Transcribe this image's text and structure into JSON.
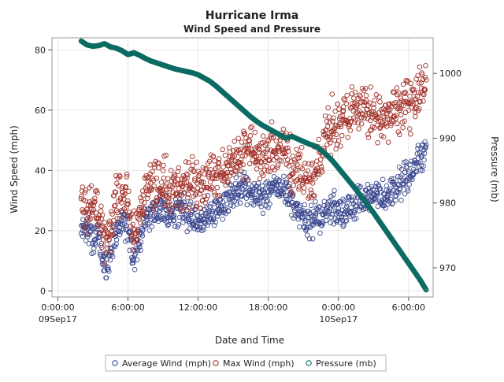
{
  "chart_data": {
    "type": "scatter",
    "title": "Hurricane Irma",
    "subtitle": "Wind Speed and Pressure",
    "xlabel": "Date and Time",
    "ylabel_left": "Wind Speed (mph)",
    "ylabel_right": "Pressure (mb)",
    "x_unit": "hours",
    "xlim": [
      -0.5,
      32.1
    ],
    "ylim_left": [
      -2,
      84
    ],
    "ylim_right": [
      965.5,
      1005.5
    ],
    "grid": true,
    "legend_position": "bottom",
    "x_ticks": [
      {
        "x": 0,
        "time": "0:00:00",
        "date": "09Sep17"
      },
      {
        "x": 6,
        "time": "6:00:00",
        "date": ""
      },
      {
        "x": 12,
        "time": "12:00:00",
        "date": ""
      },
      {
        "x": 18,
        "time": "18:00:00",
        "date": ""
      },
      {
        "x": 24,
        "time": "0:00:00",
        "date": "10Sep17"
      },
      {
        "x": 30,
        "time": "6:00:00",
        "date": ""
      }
    ],
    "y_ticks_left": [
      0,
      20,
      40,
      60,
      80
    ],
    "y_ticks_right": [
      970,
      980,
      990,
      1000
    ],
    "colors": {
      "avg": "#3d4a91",
      "max": "#a3322a",
      "pressure": "#0c6b62",
      "grid": "#e7e7e7",
      "frame": "#9a9a9a"
    },
    "series": [
      {
        "name": "Average Wind (mph)",
        "axis": "left",
        "x": [
          2.0,
          2.5,
          3.0,
          3.5,
          4.0,
          4.2,
          4.5,
          5.0,
          5.5,
          6.0,
          6.3,
          6.6,
          7.0,
          7.5,
          8.0,
          8.5,
          9.0,
          9.5,
          10.0,
          10.5,
          11.0,
          11.5,
          12.0,
          12.5,
          13.0,
          13.5,
          14.0,
          14.5,
          15.0,
          15.5,
          16.0,
          16.5,
          17.0,
          17.5,
          18.0,
          18.5,
          19.0,
          19.5,
          20.0,
          20.5,
          21.0,
          21.5,
          22.0,
          22.5,
          23.0,
          23.5,
          24.0,
          24.5,
          25.0,
          25.5,
          26.0,
          26.5,
          27.0,
          27.5,
          28.0,
          28.5,
          29.0,
          29.5,
          30.0,
          30.5,
          31.0,
          31.5
        ],
        "values": [
          22,
          20,
          19,
          17,
          10,
          7,
          14,
          20,
          24,
          22,
          14,
          11,
          18,
          24,
          27,
          26,
          27,
          25,
          26,
          28,
          26,
          25,
          24,
          24,
          27,
          27,
          28,
          30,
          32,
          34,
          35,
          34,
          32,
          31,
          32,
          34,
          34,
          33,
          30,
          26,
          24,
          23,
          24,
          25,
          26,
          27,
          26,
          27,
          28,
          29,
          30,
          31,
          32,
          31,
          30,
          32,
          35,
          37,
          38,
          41,
          44,
          46
        ]
      },
      {
        "name": "Max Wind (mph)",
        "axis": "left",
        "x": [
          2.0,
          2.5,
          3.0,
          3.5,
          4.0,
          4.2,
          4.5,
          5.0,
          5.5,
          6.0,
          6.3,
          6.6,
          7.0,
          7.5,
          8.0,
          8.5,
          9.0,
          9.5,
          10.0,
          10.5,
          11.0,
          11.5,
          12.0,
          12.5,
          13.0,
          13.5,
          14.0,
          14.5,
          15.0,
          15.5,
          16.0,
          16.5,
          17.0,
          17.5,
          18.0,
          18.5,
          19.0,
          19.5,
          20.0,
          20.5,
          21.0,
          21.5,
          22.0,
          22.5,
          23.0,
          23.5,
          24.0,
          24.5,
          25.0,
          25.5,
          26.0,
          26.5,
          27.0,
          27.5,
          28.0,
          28.5,
          29.0,
          29.5,
          30.0,
          30.5,
          31.0,
          31.5
        ],
        "values": [
          30,
          29,
          28,
          26,
          18,
          15,
          22,
          30,
          34,
          31,
          22,
          18,
          27,
          33,
          36,
          35,
          36,
          33,
          34,
          37,
          36,
          36,
          34,
          35,
          38,
          39,
          40,
          41,
          43,
          45,
          46,
          47,
          46,
          44,
          45,
          47,
          48,
          46,
          42,
          40,
          38,
          37,
          40,
          45,
          52,
          55,
          55,
          56,
          58,
          59,
          60,
          60,
          58,
          57,
          56,
          58,
          60,
          61,
          62,
          64,
          66,
          68
        ]
      },
      {
        "name": "Pressure (mb)",
        "axis": "right",
        "x": [
          2.0,
          2.5,
          3.0,
          3.5,
          4.0,
          4.5,
          5.0,
          5.5,
          6.0,
          6.5,
          7.0,
          7.5,
          8.0,
          8.5,
          9.0,
          9.5,
          10.0,
          10.5,
          11.0,
          11.5,
          12.0,
          12.5,
          13.0,
          13.5,
          14.0,
          14.5,
          15.0,
          15.5,
          16.0,
          16.5,
          17.0,
          17.5,
          18.0,
          18.5,
          19.0,
          19.5,
          20.0,
          20.5,
          21.0,
          21.5,
          22.0,
          22.5,
          23.0,
          23.5,
          24.0,
          24.5,
          25.0,
          25.5,
          26.0,
          26.5,
          27.0,
          27.5,
          28.0,
          28.5,
          29.0,
          29.5,
          30.0,
          30.5,
          31.0,
          31.5
        ],
        "values": [
          1005,
          1004.4,
          1004.2,
          1004.3,
          1004.6,
          1004.1,
          1003.9,
          1003.5,
          1002.9,
          1003.2,
          1002.8,
          1002.3,
          1001.9,
          1001.6,
          1001.3,
          1001.0,
          1000.7,
          1000.5,
          1000.3,
          1000.1,
          999.8,
          999.3,
          998.8,
          998.1,
          997.3,
          996.5,
          995.7,
          994.9,
          994.1,
          993.3,
          992.6,
          992.0,
          991.5,
          991.0,
          990.5,
          990.0,
          990.3,
          989.9,
          989.5,
          989.1,
          988.8,
          988.2,
          987.4,
          986.5,
          985.4,
          984.3,
          983.2,
          982.1,
          980.9,
          979.7,
          978.5,
          977.2,
          975.9,
          974.6,
          973.3,
          972.0,
          970.7,
          969.4,
          968.1,
          966.6
        ]
      }
    ]
  }
}
